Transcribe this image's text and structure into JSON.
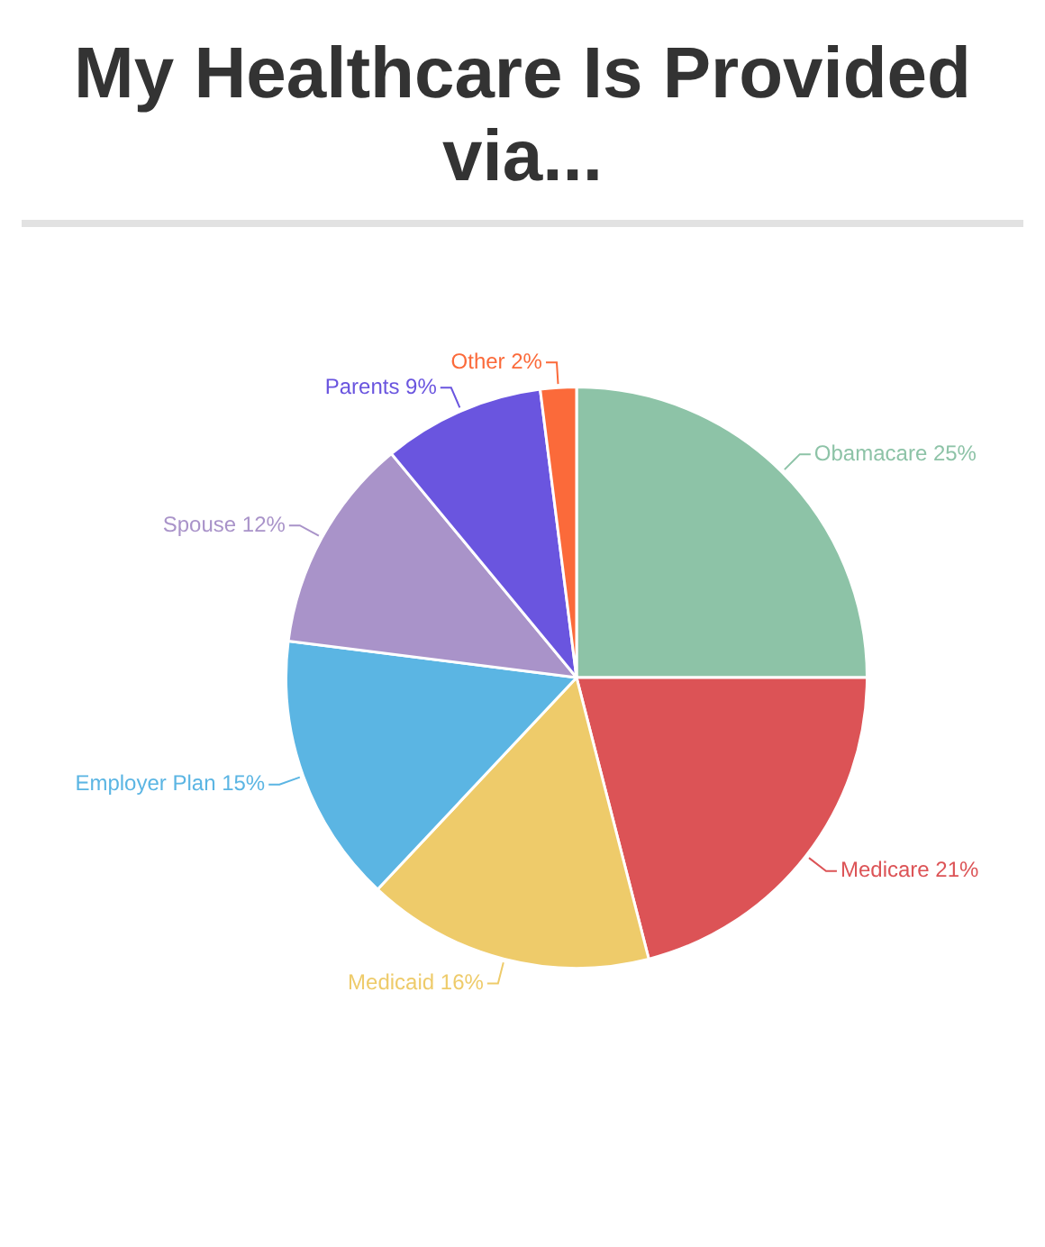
{
  "chart_data": {
    "type": "pie",
    "title": "My Healthcare Is Provided via...",
    "categories": [
      "Obamacare",
      "Medicare",
      "Medicaid",
      "Employer Plan",
      "Spouse",
      "Parents",
      "Other"
    ],
    "values": [
      25,
      21,
      16,
      15,
      12,
      9,
      2
    ],
    "value_labels": [
      "25%",
      "21%",
      "16%",
      "15%",
      "12%",
      "9%",
      "2%"
    ],
    "colors": [
      "#8dc3a7",
      "#dc5356",
      "#eecb6a",
      "#5bb5e3",
      "#a993c9",
      "#6a55df",
      "#fb6a3a"
    ],
    "legend": false
  }
}
